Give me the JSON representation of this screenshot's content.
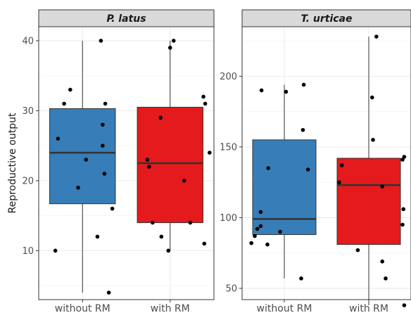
{
  "chart_data": {
    "type": "boxplot",
    "ylabel": "Reproductive output",
    "xlabel": "",
    "categories": [
      "without RM",
      "with RM"
    ],
    "colors": {
      "without RM": "#377EB8",
      "with RM": "#E41A1C"
    },
    "panels": [
      {
        "title": "P. latus",
        "ylim": [
          3,
          42
        ],
        "yticks": [
          10,
          20,
          30,
          40
        ],
        "boxes": [
          {
            "category": "without RM",
            "min": 4,
            "q1": 16.7,
            "median": 24,
            "q3": 30.3,
            "max": 40
          },
          {
            "category": "with RM",
            "min": 10,
            "q1": 14,
            "median": 22.5,
            "q3": 30.5,
            "max": 40
          }
        ],
        "points": [
          {
            "category": "without RM",
            "jitter": -0.21,
            "value": 31
          },
          {
            "category": "without RM",
            "jitter": -0.14,
            "value": 33
          },
          {
            "category": "without RM",
            "jitter": -0.28,
            "value": 26
          },
          {
            "category": "without RM",
            "jitter": 0.04,
            "value": 23
          },
          {
            "category": "without RM",
            "jitter": -0.05,
            "value": 19
          },
          {
            "category": "without RM",
            "jitter": 0.21,
            "value": 40
          },
          {
            "category": "without RM",
            "jitter": 0.26,
            "value": 31
          },
          {
            "category": "without RM",
            "jitter": 0.23,
            "value": 28
          },
          {
            "category": "without RM",
            "jitter": 0.23,
            "value": 25
          },
          {
            "category": "without RM",
            "jitter": 0.25,
            "value": 21
          },
          {
            "category": "without RM",
            "jitter": 0.34,
            "value": 16
          },
          {
            "category": "without RM",
            "jitter": 0.17,
            "value": 12
          },
          {
            "category": "without RM",
            "jitter": -0.31,
            "value": 10
          },
          {
            "category": "without RM",
            "jitter": 0.3,
            "value": 4
          },
          {
            "category": "with RM",
            "jitter": 0.04,
            "value": 40
          },
          {
            "category": "with RM",
            "jitter": 0.0,
            "value": 39
          },
          {
            "category": "with RM",
            "jitter": 0.38,
            "value": 32
          },
          {
            "category": "with RM",
            "jitter": 0.4,
            "value": 31
          },
          {
            "category": "with RM",
            "jitter": -0.11,
            "value": 29
          },
          {
            "category": "with RM",
            "jitter": -0.26,
            "value": 23
          },
          {
            "category": "with RM",
            "jitter": -0.24,
            "value": 22
          },
          {
            "category": "with RM",
            "jitter": 0.45,
            "value": 24
          },
          {
            "category": "with RM",
            "jitter": 0.16,
            "value": 20
          },
          {
            "category": "with RM",
            "jitter": -0.2,
            "value": 14
          },
          {
            "category": "with RM",
            "jitter": 0.23,
            "value": 14
          },
          {
            "category": "with RM",
            "jitter": -0.1,
            "value": 12
          },
          {
            "category": "with RM",
            "jitter": 0.39,
            "value": 11
          },
          {
            "category": "with RM",
            "jitter": -0.02,
            "value": 10
          }
        ]
      },
      {
        "title": "T. urticae",
        "ylim": [
          42,
          235
        ],
        "yticks": [
          50,
          100,
          150,
          200
        ],
        "boxes": [
          {
            "category": "without RM",
            "min": 57,
            "q1": 88,
            "median": 99,
            "q3": 155,
            "max": 194
          },
          {
            "category": "with RM",
            "min": 38,
            "q1": 81,
            "median": 123,
            "q3": 142,
            "max": 228
          }
        ],
        "points": [
          {
            "category": "without RM",
            "jitter": -0.27,
            "value": 190
          },
          {
            "category": "without RM",
            "jitter": 0.02,
            "value": 189
          },
          {
            "category": "without RM",
            "jitter": 0.23,
            "value": 194
          },
          {
            "category": "without RM",
            "jitter": 0.22,
            "value": 162
          },
          {
            "category": "without RM",
            "jitter": 0.28,
            "value": 134
          },
          {
            "category": "without RM",
            "jitter": -0.19,
            "value": 135
          },
          {
            "category": "without RM",
            "jitter": -0.28,
            "value": 104
          },
          {
            "category": "without RM",
            "jitter": -0.28,
            "value": 94
          },
          {
            "category": "without RM",
            "jitter": -0.32,
            "value": 92
          },
          {
            "category": "without RM",
            "jitter": -0.05,
            "value": 90
          },
          {
            "category": "without RM",
            "jitter": -0.35,
            "value": 87
          },
          {
            "category": "without RM",
            "jitter": -0.39,
            "value": 82
          },
          {
            "category": "without RM",
            "jitter": -0.2,
            "value": 81
          },
          {
            "category": "without RM",
            "jitter": 0.2,
            "value": 57
          },
          {
            "category": "with RM",
            "jitter": 0.09,
            "value": 228
          },
          {
            "category": "with RM",
            "jitter": 0.04,
            "value": 185
          },
          {
            "category": "with RM",
            "jitter": 0.05,
            "value": 155
          },
          {
            "category": "with RM",
            "jitter": 0.42,
            "value": 143
          },
          {
            "category": "with RM",
            "jitter": 0.4,
            "value": 141
          },
          {
            "category": "with RM",
            "jitter": -0.32,
            "value": 137
          },
          {
            "category": "with RM",
            "jitter": -0.35,
            "value": 125
          },
          {
            "category": "with RM",
            "jitter": 0.16,
            "value": 122
          },
          {
            "category": "with RM",
            "jitter": 0.41,
            "value": 106
          },
          {
            "category": "with RM",
            "jitter": 0.4,
            "value": 95
          },
          {
            "category": "with RM",
            "jitter": -0.13,
            "value": 77
          },
          {
            "category": "with RM",
            "jitter": 0.16,
            "value": 69
          },
          {
            "category": "with RM",
            "jitter": 0.2,
            "value": 57
          },
          {
            "category": "with RM",
            "jitter": 0.42,
            "value": 38
          }
        ]
      }
    ]
  }
}
